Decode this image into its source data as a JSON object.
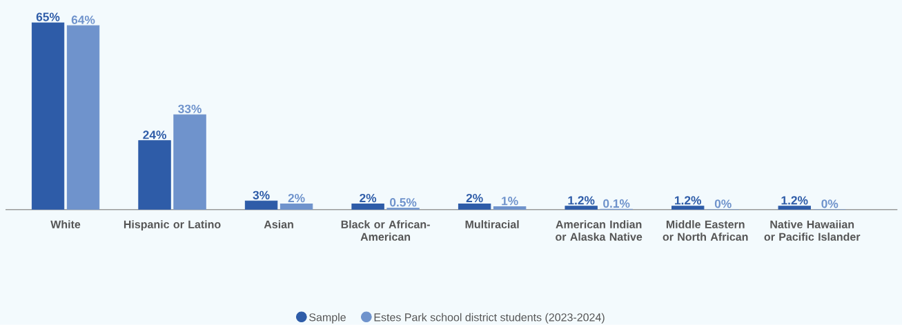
{
  "chart_data": {
    "type": "bar",
    "categories": [
      "White",
      "Hispanic or Latino",
      "Asian",
      "Black or African-American",
      "Multiracial",
      "American Indian or Alaska Native",
      "Middle Eastern or North African",
      "Native Hawaiian or Pacific Islander"
    ],
    "series": [
      {
        "name": "Sample",
        "color": "#2e5ca8",
        "values": [
          65,
          24,
          3,
          2,
          2,
          1.2,
          1.2,
          1.2
        ],
        "value_labels": [
          "65%",
          "24%",
          "3%",
          "2%",
          "2%",
          "1.2%",
          "1.2%",
          "1.2%"
        ]
      },
      {
        "name": "Estes Park school district students (2023-2024)",
        "color": "#6f93cc",
        "values": [
          64,
          33,
          2,
          0.5,
          1,
          0.1,
          0,
          0
        ],
        "value_labels": [
          "64%",
          "33%",
          "2%",
          "0.5%",
          "1%",
          "0.1%",
          "0%",
          "0%"
        ]
      }
    ],
    "legend": "bottom"
  }
}
